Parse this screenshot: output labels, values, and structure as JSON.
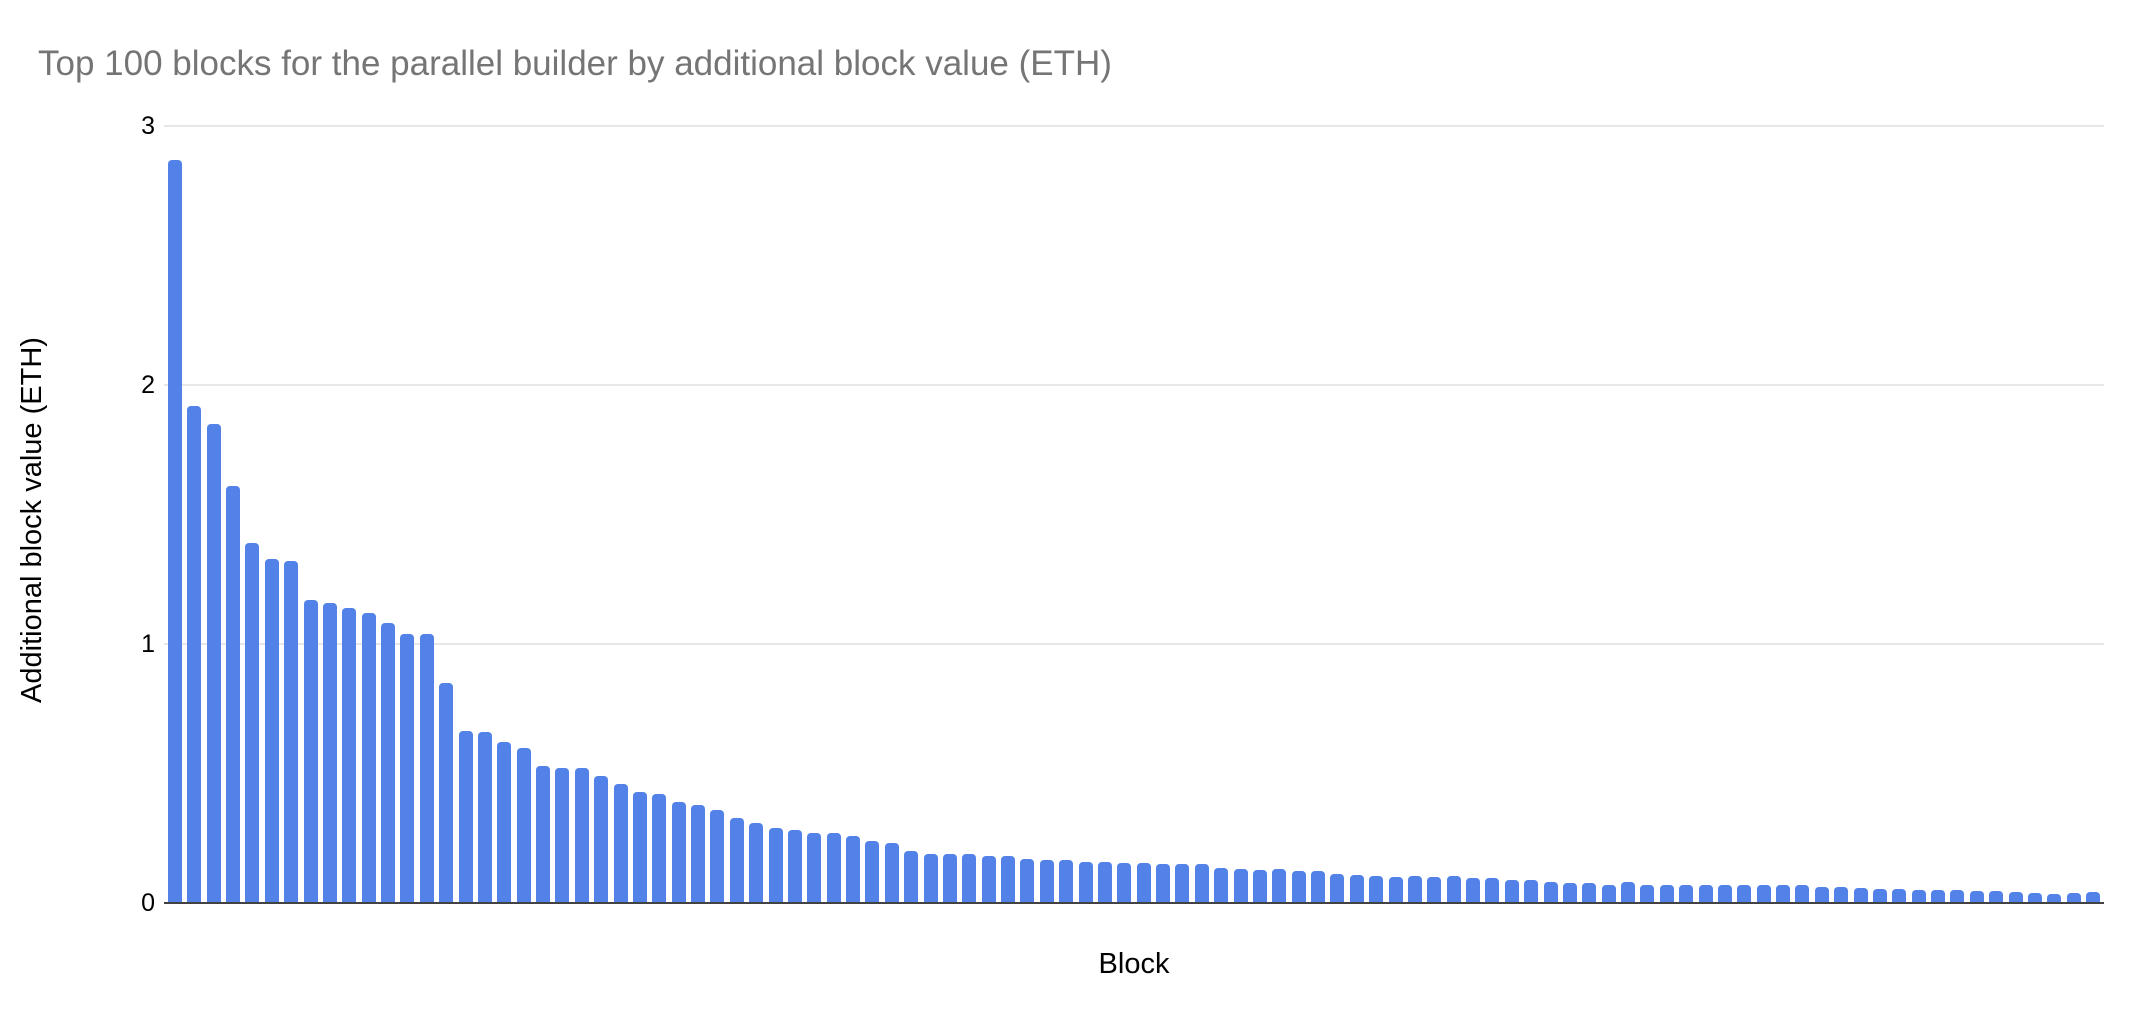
{
  "chart_data": {
    "type": "bar",
    "title": "Top 100 blocks for the parallel builder by additional block value (ETH)",
    "xlabel": "Block",
    "ylabel": "Additional block value (ETH)",
    "ylim": [
      0,
      3
    ],
    "y_ticks": [
      0,
      1,
      2,
      3
    ],
    "x_tick_labels": "none",
    "legend": "none",
    "grid": "horizontal",
    "categories_note": "100 individual blocks ranked by additional block value; no per-bar labels shown",
    "values": [
      2.87,
      1.92,
      1.85,
      1.61,
      1.39,
      1.33,
      1.32,
      1.17,
      1.16,
      1.14,
      1.12,
      1.08,
      1.04,
      1.04,
      0.85,
      0.665,
      0.66,
      0.62,
      0.6,
      0.53,
      0.52,
      0.52,
      0.49,
      0.46,
      0.43,
      0.42,
      0.39,
      0.38,
      0.36,
      0.33,
      0.31,
      0.29,
      0.28,
      0.27,
      0.27,
      0.26,
      0.24,
      0.23,
      0.2,
      0.19,
      0.19,
      0.19,
      0.18,
      0.18,
      0.17,
      0.165,
      0.165,
      0.16,
      0.16,
      0.155,
      0.155,
      0.15,
      0.15,
      0.15,
      0.135,
      0.13,
      0.128,
      0.13,
      0.122,
      0.125,
      0.113,
      0.11,
      0.105,
      0.102,
      0.105,
      0.102,
      0.105,
      0.095,
      0.095,
      0.09,
      0.09,
      0.08,
      0.076,
      0.076,
      0.071,
      0.08,
      0.071,
      0.071,
      0.07,
      0.068,
      0.068,
      0.07,
      0.068,
      0.07,
      0.068,
      0.062,
      0.06,
      0.059,
      0.054,
      0.054,
      0.051,
      0.051,
      0.051,
      0.045,
      0.048,
      0.042,
      0.04,
      0.034,
      0.038,
      0.042
    ],
    "colors": {
      "bar": "#5282e8",
      "title_text": "#757575",
      "axis_text": "#000000",
      "gridline": "#e7e7e7",
      "axis_line": "#424242",
      "background": "#ffffff"
    }
  }
}
